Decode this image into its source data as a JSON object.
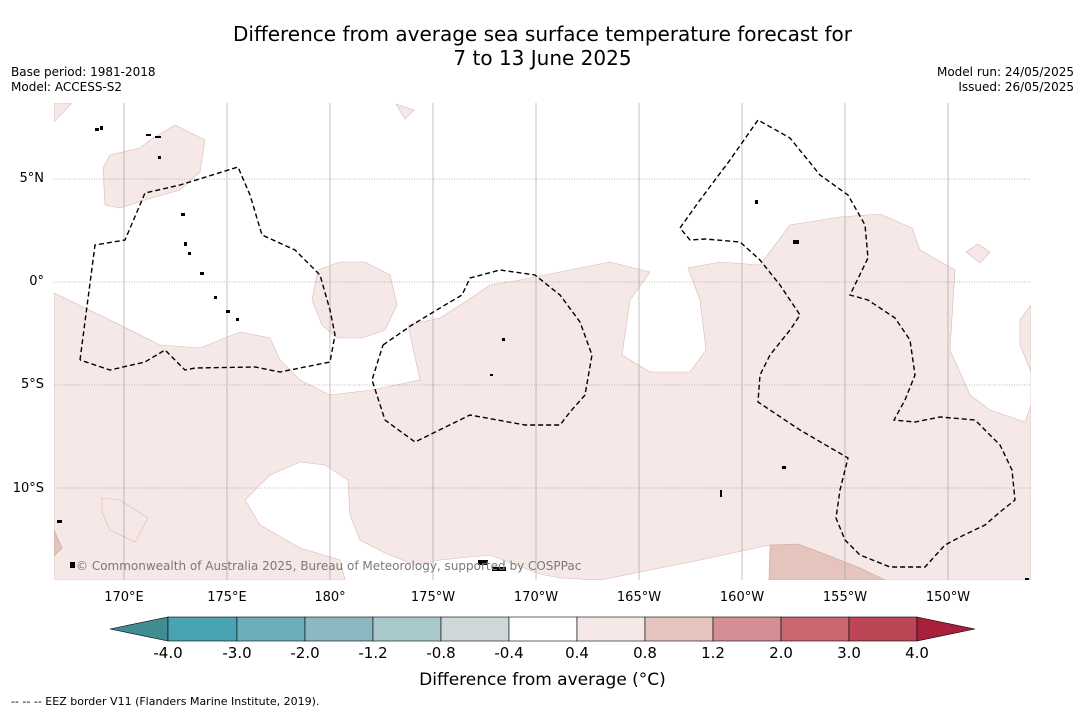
{
  "title": {
    "line1": "Difference from average sea surface temperature forecast for",
    "line2": "7 to 13 June 2025"
  },
  "info_left": {
    "base_period": "Base period: 1981-2018",
    "model": "Model: ACCESS-S2"
  },
  "info_right": {
    "model_run": "Model run: 24/05/2025",
    "issued": "Issued: 26/05/2025"
  },
  "map": {
    "lat_labels": [
      "5°N",
      "0°",
      "5°S",
      "10°S"
    ],
    "lon_labels": [
      "170°E",
      "175°E",
      "180°",
      "175°W",
      "170°W",
      "165°W",
      "160°W",
      "155°W",
      "150°W"
    ],
    "copyright": "© Commonwealth of Australia 2025, Bureau of Meteorology, supported by COSPPac"
  },
  "colorbar": {
    "title": "Difference from average (°C)",
    "ticks": [
      "-4.0",
      "-3.0",
      "-2.0",
      "-1.2",
      "-0.8",
      "-0.4",
      "0.4",
      "0.8",
      "1.2",
      "2.0",
      "3.0",
      "4.0"
    ],
    "colors": [
      "#3f8c93",
      "#4aa3b4",
      "#6caebb",
      "#8cb8c2",
      "#a9c8cc",
      "#d0d7d9",
      "#ffffff",
      "#f5e8e6",
      "#e6c4be",
      "#d48e94",
      "#c96670",
      "#bd4656",
      "#a8203b"
    ]
  },
  "footnote": "-- -- -- EEZ border V11 (Flanders Marine Institute, 2019)."
}
